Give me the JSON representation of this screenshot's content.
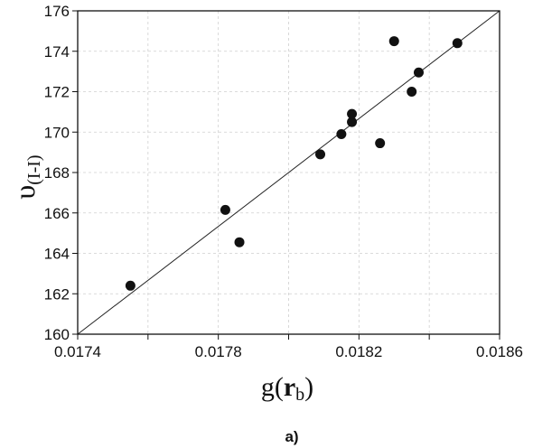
{
  "chart_data": {
    "type": "scatter",
    "panel_label": "a)",
    "xlabel_base": "g(",
    "xlabel_bold": "r",
    "xlabel_sub": "b",
    "xlabel_close": ")",
    "ylabel_base": "υ",
    "ylabel_sub": "(I-I)",
    "xlim": [
      0.0174,
      0.0186
    ],
    "ylim": [
      160,
      176
    ],
    "x_ticks": [
      0.0174,
      0.0176,
      0.0178,
      0.018,
      0.0182,
      0.0184,
      0.0186
    ],
    "x_tick_labels": [
      "0.0174",
      "",
      "0.0178",
      "",
      "0.0182",
      "",
      "0.0186"
    ],
    "y_ticks": [
      160,
      162,
      164,
      166,
      168,
      170,
      172,
      174,
      176
    ],
    "y_tick_labels": [
      "160",
      "162",
      "164",
      "166",
      "168",
      "170",
      "172",
      "174",
      "176"
    ],
    "grid": true,
    "points": [
      {
        "x": 0.01755,
        "y": 162.4
      },
      {
        "x": 0.01782,
        "y": 166.15
      },
      {
        "x": 0.01786,
        "y": 164.55
      },
      {
        "x": 0.01809,
        "y": 168.9
      },
      {
        "x": 0.01815,
        "y": 169.9
      },
      {
        "x": 0.01818,
        "y": 170.5
      },
      {
        "x": 0.01818,
        "y": 170.9
      },
      {
        "x": 0.01826,
        "y": 169.45
      },
      {
        "x": 0.0183,
        "y": 174.5
      },
      {
        "x": 0.01835,
        "y": 172.0
      },
      {
        "x": 0.01837,
        "y": 172.95
      },
      {
        "x": 0.01848,
        "y": 174.4
      }
    ],
    "fit_line": {
      "x": [
        0.0174,
        0.0186
      ],
      "y": [
        160.0,
        176.0
      ]
    }
  }
}
